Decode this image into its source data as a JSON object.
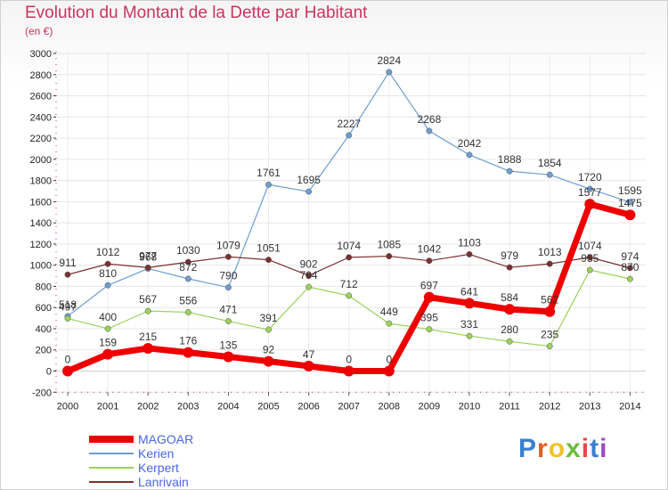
{
  "header": {
    "title": "Evolution du Montant de la Dette par Habitant",
    "subtitle": "(en €)"
  },
  "logo": {
    "text": "Proxiti",
    "colors": [
      "#3a7fd0",
      "#e85a2a",
      "#f2c12e",
      "#6dbb3c",
      "#e8464a",
      "#3a7fd0",
      "#9b4bc0"
    ]
  },
  "chart_data": {
    "type": "line",
    "title": "Evolution du Montant de la Dette par Habitant",
    "subtitle": "(en €)",
    "x": [
      "2000",
      "2001",
      "2002",
      "2003",
      "2004",
      "2005",
      "2006",
      "2007",
      "2008",
      "2009",
      "2010",
      "2011",
      "2012",
      "2013",
      "2014"
    ],
    "ylim": [
      -200,
      3000
    ],
    "yticks": [
      -200,
      0,
      200,
      400,
      600,
      800,
      1000,
      1200,
      1400,
      1600,
      1800,
      2000,
      2200,
      2400,
      2600,
      2800,
      3000
    ],
    "grid": true,
    "legend_position": "bottom-left",
    "series": [
      {
        "name": "MAGOAR",
        "color": "#ee0000",
        "values": [
          0,
          159,
          215,
          176,
          135,
          92,
          47,
          0,
          0,
          697,
          641,
          584,
          562,
          1577,
          1475
        ],
        "labels": [
          "0",
          "159",
          "215",
          "176",
          "135",
          "92",
          "47",
          "0",
          "0",
          "697",
          "641",
          "584",
          "562",
          "1577",
          "1475"
        ]
      },
      {
        "name": "Kerien",
        "color": "#6e9ed0",
        "values": [
          518,
          810,
          968,
          872,
          790,
          1761,
          1695,
          2227,
          2824,
          2268,
          2042,
          1888,
          1854,
          1720,
          1595
        ],
        "labels": [
          "518",
          "810",
          "968",
          "872",
          "790",
          "1761",
          "1695",
          "2227",
          "2824",
          "2268",
          "2042",
          "1888",
          "1854",
          "1720",
          "1595"
        ]
      },
      {
        "name": "Kerpert",
        "color": "#9ad25a",
        "values": [
          497,
          400,
          567,
          556,
          471,
          391,
          794,
          712,
          449,
          395,
          331,
          280,
          235,
          955,
          870
        ],
        "labels": [
          "497",
          "400",
          "567",
          "556",
          "471",
          "391",
          "794",
          "712",
          "449",
          "395",
          "331",
          "280",
          "235",
          "955",
          "870"
        ]
      },
      {
        "name": "Lanrivain",
        "color": "#7a3030",
        "values": [
          911,
          1012,
          977,
          1030,
          1079,
          1051,
          902,
          1074,
          1085,
          1042,
          1103,
          979,
          1013,
          1074,
          974
        ],
        "labels": [
          "911",
          "1012",
          "977",
          "1030",
          "1079",
          "1051",
          "902",
          "1074",
          "1085",
          "1042",
          "1103",
          "979",
          "1013",
          "1074",
          "974"
        ]
      }
    ]
  }
}
